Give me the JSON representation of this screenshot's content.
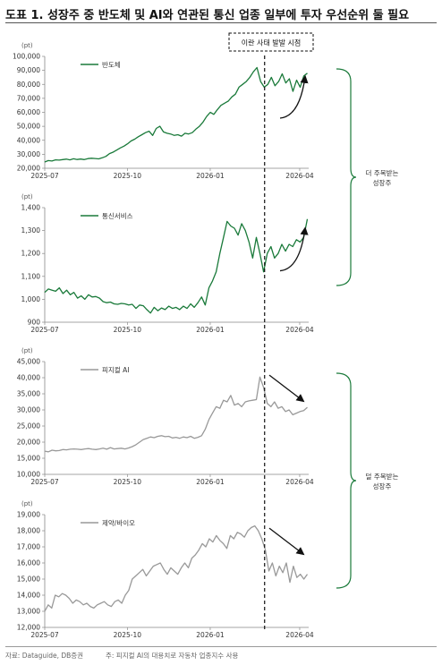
{
  "title": "도표 1. 성장주 중 반도체 및 AI와 연관된 통신 업종 일부에 투자 우선순위 둘 필요",
  "event_label": "이란 사태 발발 시점",
  "groups": [
    {
      "label_line1": "더 주목받는",
      "label_line2": "성장주"
    },
    {
      "label_line1": "덜 주목받는",
      "label_line2": "성장주"
    }
  ],
  "footer": {
    "source": "자료: Dataguide, DB증권",
    "note": "주: 피지컬 AI의 대용치로 자동차 업종지수 사용"
  },
  "colors": {
    "green": "#1a7a3a",
    "gray": "#999999"
  },
  "chart_data": [
    {
      "type": "line",
      "unit": "(pt)",
      "legend": "반도체",
      "color": "#1a7a3a",
      "x_ticks": [
        "2025-07",
        "2025-10",
        "2026-01",
        "2026-04"
      ],
      "y_ticks": [
        "20,000",
        "30,000",
        "40,000",
        "50,000",
        "60,000",
        "70,000",
        "80,000",
        "90,000",
        "100,000"
      ],
      "ylim": [
        20000,
        100000
      ],
      "trend": "up",
      "values": [
        24500,
        25500,
        25200,
        26000,
        25800,
        26200,
        26500,
        26000,
        26800,
        26300,
        26600,
        26200,
        26900,
        27200,
        27000,
        26700,
        27500,
        28500,
        30500,
        31500,
        33000,
        34500,
        35800,
        37500,
        39500,
        40800,
        42500,
        44000,
        45500,
        46500,
        43500,
        48500,
        50000,
        46000,
        45000,
        44500,
        43500,
        44000,
        43000,
        45000,
        44500,
        45500,
        48000,
        50000,
        53000,
        57000,
        60000,
        58500,
        62000,
        65000,
        66500,
        68000,
        71000,
        73000,
        78000,
        80000,
        82000,
        85000,
        89000,
        92000,
        82000,
        78000,
        80000,
        85000,
        79000,
        82000,
        87500,
        81000,
        84000,
        75000,
        83000,
        78000,
        86000,
        88000
      ]
    },
    {
      "type": "line",
      "unit": "(pt)",
      "legend": "통신서비스",
      "color": "#1a7a3a",
      "x_ticks": [
        "2025-07",
        "2025-10",
        "2026-01",
        "2026-04"
      ],
      "y_ticks": [
        "900",
        "1,000",
        "1,100",
        "1,200",
        "1,300",
        "1,400"
      ],
      "ylim": [
        900,
        1400
      ],
      "trend": "up",
      "values": [
        1030,
        1045,
        1040,
        1035,
        1050,
        1025,
        1040,
        1020,
        1030,
        1005,
        1015,
        1000,
        1020,
        1010,
        1012,
        1005,
        990,
        985,
        988,
        980,
        978,
        982,
        980,
        975,
        978,
        960,
        975,
        972,
        955,
        940,
        965,
        950,
        962,
        955,
        970,
        960,
        965,
        955,
        970,
        960,
        980,
        965,
        985,
        1010,
        975,
        1050,
        1080,
        1120,
        1200,
        1270,
        1340,
        1320,
        1310,
        1280,
        1330,
        1300,
        1250,
        1180,
        1270,
        1200,
        1120,
        1200,
        1230,
        1180,
        1200,
        1240,
        1210,
        1240,
        1230,
        1260,
        1250,
        1270,
        1350
      ]
    },
    {
      "type": "line",
      "unit": "(pt)",
      "legend": "피지컬 AI",
      "color": "#999999",
      "x_ticks": [
        "2025-07",
        "2025-10",
        "2026-01",
        "2026-04"
      ],
      "y_ticks": [
        "10,000",
        "15,000",
        "20,000",
        "25,000",
        "30,000",
        "35,000",
        "40,000",
        "45,000"
      ],
      "ylim": [
        10000,
        45000
      ],
      "trend": "down",
      "values": [
        17200,
        17000,
        17500,
        17300,
        17400,
        17700,
        17600,
        17800,
        17900,
        17800,
        17700,
        17900,
        18000,
        17800,
        17700,
        17900,
        18100,
        17800,
        18300,
        17900,
        18000,
        18100,
        17900,
        18200,
        18600,
        19200,
        20000,
        20800,
        21200,
        21600,
        21400,
        21800,
        22000,
        21700,
        21800,
        21300,
        21500,
        21200,
        21600,
        21400,
        21800,
        21200,
        21500,
        22000,
        24000,
        27000,
        29000,
        31000,
        30500,
        33000,
        32500,
        34500,
        31500,
        32000,
        31000,
        32500,
        32800,
        33000,
        33200,
        40200,
        37000,
        32000,
        31000,
        32500,
        30500,
        31000,
        29500,
        30000,
        28500,
        29000,
        29500,
        29800,
        30800
      ]
    },
    {
      "type": "line",
      "unit": "(pt)",
      "legend": "제약/바이오",
      "color": "#999999",
      "x_ticks": [
        "2025-07",
        "2025-10",
        "2026-01",
        "2026-04"
      ],
      "y_ticks": [
        "12,000",
        "13,000",
        "14,000",
        "15,000",
        "16,000",
        "17,000",
        "18,000",
        "19,000"
      ],
      "ylim": [
        12000,
        19000
      ],
      "trend": "down",
      "values": [
        13000,
        13400,
        13200,
        14000,
        13900,
        14100,
        14000,
        13800,
        13500,
        13700,
        13600,
        13400,
        13500,
        13300,
        13200,
        13400,
        13500,
        13600,
        13400,
        13300,
        13600,
        13700,
        13500,
        14000,
        14300,
        15000,
        15200,
        15400,
        15600,
        15200,
        15500,
        15800,
        15900,
        16000,
        15600,
        15300,
        15700,
        15500,
        15300,
        15700,
        16000,
        15700,
        16300,
        16500,
        16800,
        17200,
        17000,
        17500,
        17300,
        17700,
        17400,
        17200,
        16900,
        17700,
        17500,
        17900,
        17800,
        17600,
        18000,
        18200,
        18300,
        18000,
        17500,
        16800,
        15500,
        16000,
        15200,
        15800,
        15400,
        16000,
        14800,
        15800,
        15100,
        15300,
        15000,
        15300
      ]
    }
  ]
}
